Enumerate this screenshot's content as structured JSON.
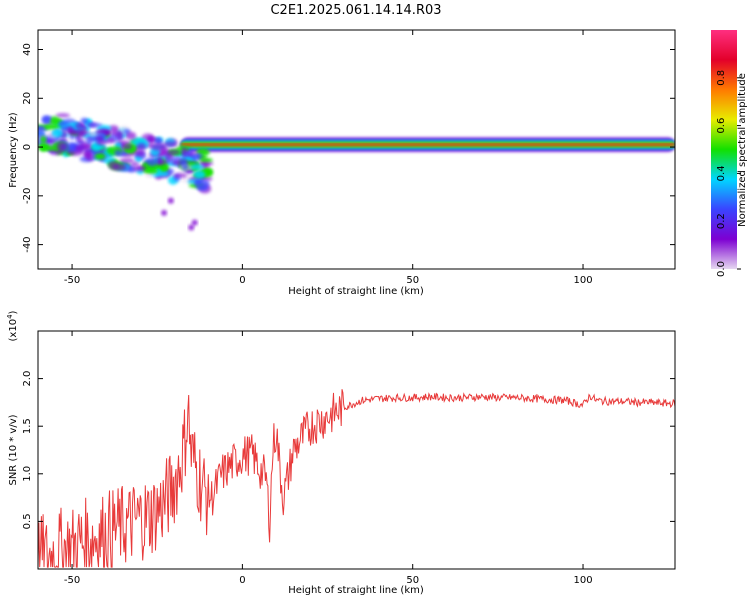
{
  "title": "C2E1.2025.061.14.14.R03",
  "colors": {
    "signal_line": "#e83a3a",
    "colormap": [
      "#e6d8f0",
      "#7d00d2",
      "#3a44ff",
      "#00d6ff",
      "#12e000",
      "#e8ec00",
      "#ff7a00",
      "#e3002a",
      "#ff2f80"
    ]
  },
  "chart_data": [
    {
      "type": "heatmap",
      "xlabel": "Height of straight line (km)",
      "ylabel": "Frequency (Hz)",
      "xlim": [
        -60,
        127
      ],
      "ylim": [
        -50,
        48
      ],
      "xticks": [
        -50,
        0,
        50,
        100
      ],
      "yticks": [
        -40,
        -20,
        0,
        20,
        40
      ],
      "xtick_labels": [
        "-50",
        "0",
        "50",
        "100"
      ],
      "ytick_labels": [
        "-40",
        "-20",
        "0",
        "20",
        "40"
      ],
      "grid": false,
      "description_values": {
        "main_band_frequency_hz": 1,
        "main_band_x_range_km": [
          -18,
          127
        ],
        "scatter_x_range_km": [
          -60,
          -10
        ],
        "scatter_freq_range_hz": [
          -33,
          10
        ]
      },
      "colorbar": {
        "label": "Normalized spectral amplitude",
        "range": [
          0,
          1
        ],
        "ticks": [
          0.0,
          0.2,
          0.4,
          0.6,
          0.8
        ],
        "tick_labels": [
          "0.0",
          "0.2",
          "0.4",
          "0.6",
          "0.8"
        ]
      }
    },
    {
      "type": "line",
      "xlabel": "Height of straight line (km)",
      "ylabel": "SNR (10 * v/v)",
      "y_multiplier": "(x10",
      "y_multiplier_exp": "4",
      "y_multiplier_close": ")",
      "xlim": [
        -60,
        127
      ],
      "ylim": [
        0,
        2.5
      ],
      "xticks": [
        -50,
        0,
        50,
        100
      ],
      "xtick_labels": [
        "-50",
        "0",
        "50",
        "100"
      ],
      "yticks": [
        0.5,
        1.0,
        1.5,
        2.0
      ],
      "ytick_labels": [
        "0.5",
        "1.0",
        "1.5",
        "2.0"
      ],
      "grid": false,
      "series": [
        {
          "x": [
            -60,
            -57,
            -54,
            -51,
            -48,
            -45,
            -42,
            -39,
            -36,
            -33,
            -30,
            -27,
            -24,
            -21,
            -19,
            -17,
            -16,
            -15,
            -13,
            -11,
            -9,
            -6,
            -3,
            0,
            3,
            5,
            7,
            8,
            9,
            10,
            11,
            12,
            13,
            15,
            17,
            20,
            25,
            30,
            35,
            40,
            45,
            50,
            55,
            60,
            65,
            70,
            75,
            80,
            85,
            90,
            95,
            100,
            102,
            104,
            108,
            112,
            116,
            120,
            124,
            127
          ],
          "y": [
            0.15,
            0.12,
            0.2,
            0.22,
            0.27,
            0.32,
            0.36,
            0.4,
            0.44,
            0.47,
            0.53,
            0.56,
            0.65,
            0.8,
            1.0,
            1.3,
            1.7,
            1.2,
            1.0,
            0.8,
            0.75,
            1.0,
            1.1,
            1.2,
            1.2,
            1.05,
            0.95,
            0.5,
            1.3,
            1.45,
            1.05,
            0.75,
            0.9,
            1.25,
            1.35,
            1.5,
            1.6,
            1.7,
            1.77,
            1.79,
            1.8,
            1.8,
            1.81,
            1.8,
            1.8,
            1.81,
            1.8,
            1.8,
            1.79,
            1.78,
            1.77,
            1.72,
            1.82,
            1.77,
            1.76,
            1.76,
            1.75,
            1.75,
            1.74,
            1.74
          ]
        }
      ]
    }
  ]
}
